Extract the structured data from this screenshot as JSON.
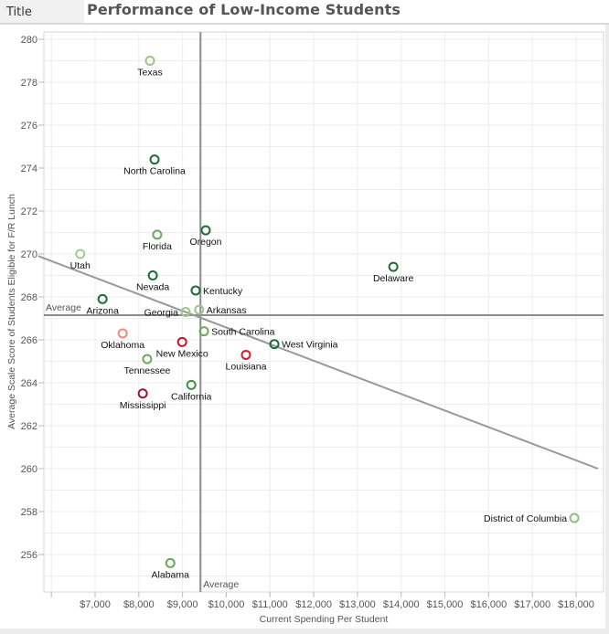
{
  "header": {
    "tag": "Title",
    "title": "Performance of Low-Income Students"
  },
  "chart_data": {
    "type": "scatter",
    "title": "Performance of Low-Income Students",
    "xlabel": "Current Spending Per Student",
    "ylabel": "Average Scale Score of Students Eligible for F/R Lunch",
    "xlim": [
      5700,
      18500
    ],
    "ylim": [
      254.8,
      280.3
    ],
    "x_ticks": [
      7000,
      8000,
      9000,
      10000,
      11000,
      12000,
      13000,
      14000,
      15000,
      16000,
      17000,
      18000
    ],
    "x_tick_labels": [
      "$7,000",
      "$8,000",
      "$9,000",
      "$10,000",
      "$11,000",
      "$12,000",
      "$13,000",
      "$14,000",
      "$15,000",
      "$16,000",
      "$17,000",
      "$18,000"
    ],
    "y_ticks": [
      256,
      258,
      260,
      262,
      264,
      266,
      268,
      270,
      272,
      274,
      276,
      278,
      280
    ],
    "y_tick_labels": [
      "256",
      "258",
      "260",
      "262",
      "264",
      "266",
      "268",
      "270",
      "272",
      "274",
      "276",
      "278",
      "280"
    ],
    "grid": true,
    "reference_lines": {
      "x_average": {
        "value": 9410,
        "label": "Average"
      },
      "y_average": {
        "value": 267.15,
        "label": "Average"
      }
    },
    "trend_line": {
      "x": [
        5700,
        18500
      ],
      "y": [
        269.9,
        260.0
      ]
    },
    "points": [
      {
        "name": "Texas",
        "x": 8255,
        "y": 279.0,
        "color": "#9dc48a",
        "label_pos": "below"
      },
      {
        "name": "North Carolina",
        "x": 8360,
        "y": 274.4,
        "color": "#1e6b35",
        "label_pos": "below"
      },
      {
        "name": "Florida",
        "x": 8420,
        "y": 270.9,
        "color": "#6aa85c",
        "label_pos": "below"
      },
      {
        "name": "Oregon",
        "x": 9530,
        "y": 271.1,
        "color": "#1e6b35",
        "label_pos": "below"
      },
      {
        "name": "Utah",
        "x": 6660,
        "y": 270.0,
        "color": "#a6c994",
        "label_pos": "below"
      },
      {
        "name": "Nevada",
        "x": 8320,
        "y": 269.0,
        "color": "#1e6b35",
        "label_pos": "below"
      },
      {
        "name": "Kentucky",
        "x": 9300,
        "y": 268.3,
        "color": "#1e6b35",
        "label_pos": "right"
      },
      {
        "name": "Arizona",
        "x": 7170,
        "y": 267.9,
        "color": "#1e6b35",
        "label_pos": "below"
      },
      {
        "name": "Arkansas",
        "x": 9380,
        "y": 267.4,
        "color": "#9dc48a",
        "label_pos": "right"
      },
      {
        "name": "Georgia",
        "x": 9070,
        "y": 267.3,
        "color": "#9dc48a",
        "label_pos": "left"
      },
      {
        "name": "Oklahoma",
        "x": 7630,
        "y": 266.3,
        "color": "#f08a7a",
        "label_pos": "below"
      },
      {
        "name": "South Carolina",
        "x": 9490,
        "y": 266.4,
        "color": "#6aa85c",
        "label_pos": "right"
      },
      {
        "name": "New Mexico",
        "x": 8990,
        "y": 265.9,
        "color": "#c0162a",
        "label_pos": "below"
      },
      {
        "name": "West Virginia",
        "x": 11100,
        "y": 265.8,
        "color": "#1e6b35",
        "label_pos": "right"
      },
      {
        "name": "Tennessee",
        "x": 8190,
        "y": 265.1,
        "color": "#6aa85c",
        "label_pos": "below"
      },
      {
        "name": "Louisiana",
        "x": 10450,
        "y": 265.3,
        "color": "#d0202e",
        "label_pos": "below"
      },
      {
        "name": "California",
        "x": 9200,
        "y": 263.9,
        "color": "#3e8f45",
        "label_pos": "below"
      },
      {
        "name": "Mississippi",
        "x": 8090,
        "y": 263.5,
        "color": "#a3122e",
        "label_pos": "below"
      },
      {
        "name": "Delaware",
        "x": 13820,
        "y": 269.4,
        "color": "#1e6b35",
        "label_pos": "below"
      },
      {
        "name": "District of Columbia",
        "x": 17960,
        "y": 257.7,
        "color": "#8fbf7a",
        "label_pos": "left"
      },
      {
        "name": "Alabama",
        "x": 8720,
        "y": 255.6,
        "color": "#6aa85c",
        "label_pos": "below"
      }
    ]
  }
}
